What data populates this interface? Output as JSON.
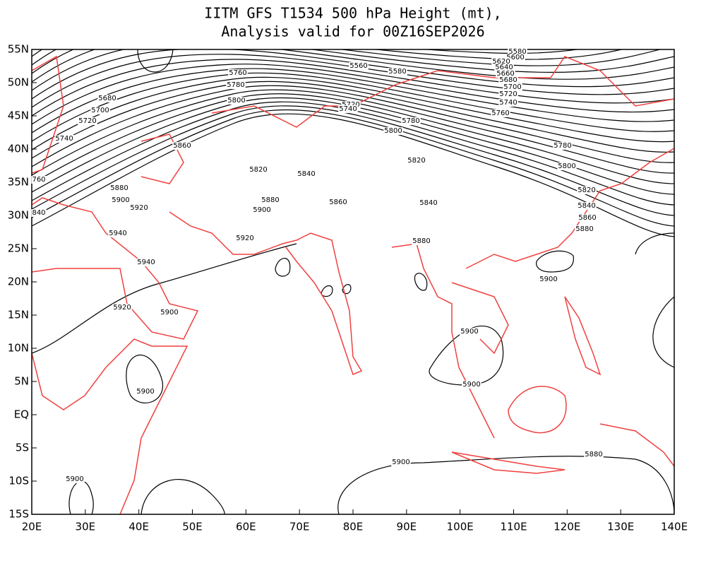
{
  "title": [
    "IITM GFS T1534 500 hPa Height (mt),",
    "Analysis valid for 00Z16SEP2026"
  ],
  "map": {
    "longitude_labels": [
      "20E",
      "30E",
      "40E",
      "50E",
      "60E",
      "70E",
      "80E",
      "90E",
      "100E",
      "110E",
      "120E",
      "130E",
      "140E"
    ],
    "latitude_labels": [
      "55N",
      "50N",
      "45N",
      "40N",
      "35N",
      "30N",
      "25N",
      "20N",
      "15N",
      "10N",
      "5N",
      "EQ",
      "5S",
      "10S",
      "15S"
    ],
    "contour_labels": [
      "5560",
      "5580",
      "5580",
      "5600",
      "5620",
      "5640",
      "5660",
      "5680",
      "5700",
      "5720",
      "5740",
      "5760",
      "5760",
      "5780",
      "5800",
      "5680",
      "5700",
      "5720",
      "5740",
      "5720",
      "5740",
      "5780",
      "5800",
      "5860",
      "5820",
      "5840",
      "5820",
      "5780",
      "5800",
      "5820",
      "5840",
      "5860",
      "5880",
      "760",
      "5880",
      "5900",
      "5920",
      "840",
      "5880",
      "5900",
      "5860",
      "5840",
      "5940",
      "5920",
      "5880",
      "5940",
      "5900",
      "5920",
      "5900",
      "5900",
      "5900",
      "5900",
      "5900",
      "5880",
      "5900"
    ]
  }
}
